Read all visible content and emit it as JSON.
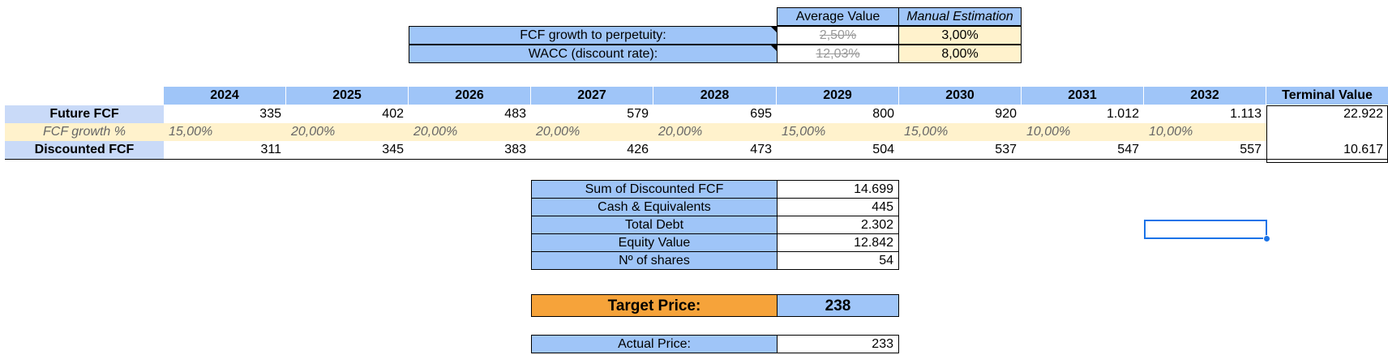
{
  "assumptions": {
    "col_average": "Average Value",
    "col_manual": "Manual Estimation",
    "rows": [
      {
        "label": "FCF growth to perpetuity:",
        "average": "2,50%",
        "manual": "3,00%"
      },
      {
        "label": "WACC (discount rate):",
        "average": "12,03%",
        "manual": "8,00%"
      }
    ]
  },
  "projection": {
    "years": [
      "2024",
      "2025",
      "2026",
      "2027",
      "2028",
      "2029",
      "2030",
      "2031",
      "2032"
    ],
    "terminal_header": "Terminal Value",
    "future_fcf": {
      "label": "Future FCF",
      "values": [
        "335",
        "402",
        "483",
        "579",
        "695",
        "800",
        "920",
        "1.012",
        "1.113"
      ],
      "terminal": "22.922"
    },
    "fcf_growth": {
      "label": "FCF growth %",
      "values": [
        "15,00%",
        "20,00%",
        "20,00%",
        "20,00%",
        "20,00%",
        "15,00%",
        "15,00%",
        "10,00%",
        "10,00%"
      ]
    },
    "discounted_fcf": {
      "label": "Discounted FCF",
      "values": [
        "311",
        "345",
        "383",
        "426",
        "473",
        "504",
        "537",
        "547",
        "557"
      ],
      "terminal": "10.617"
    }
  },
  "valuation": {
    "rows": [
      {
        "label": "Sum of Discounted FCF",
        "value": "14.699"
      },
      {
        "label": "Cash & Equivalents",
        "value": "445"
      },
      {
        "label": "Total Debt",
        "value": "2.302"
      },
      {
        "label": "Equity Value",
        "value": "12.842"
      },
      {
        "label": "Nº of shares",
        "value": "54"
      }
    ],
    "target_price_label": "Target Price:",
    "target_price_value": "238",
    "actual_price_label": "Actual Price:",
    "actual_price_value": "233"
  },
  "colors": {
    "header_blue": "#9fc5f8",
    "row_label_blue": "#c9daf8",
    "input_cream": "#fff2cc",
    "target_orange": "#f6a33a",
    "selection": "#1a73e8"
  }
}
